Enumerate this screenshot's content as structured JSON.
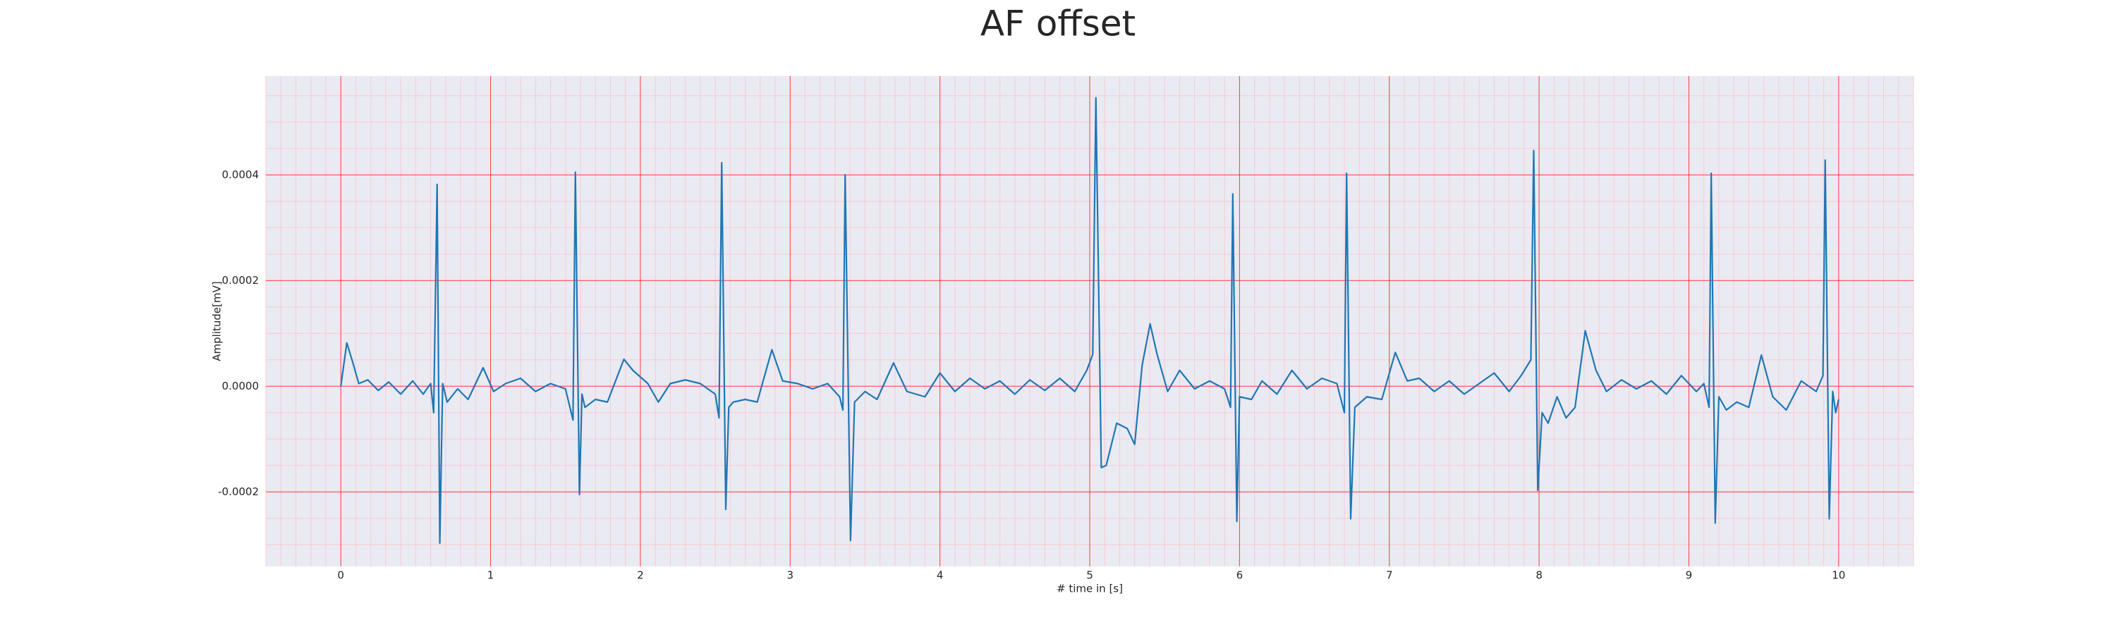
{
  "chart_data": {
    "type": "line",
    "title": "AF offset",
    "xlabel": "# time in [s]",
    "ylabel": "Amplitude[mV]",
    "xlim": [
      -0.5,
      10.5
    ],
    "ylim": [
      -0.000341,
      0.000587
    ],
    "xticks": [
      0,
      1,
      2,
      3,
      4,
      5,
      6,
      7,
      8,
      9,
      10
    ],
    "yticks": [
      -0.0002,
      {
        "value": 0,
        "label": "0.0000"
      },
      0.0002,
      0.0004
    ],
    "grid": true,
    "series": [
      {
        "color": "#1f77b4",
        "x": [
          0.0,
          0.04,
          0.08,
          0.12,
          0.18,
          0.25,
          0.32,
          0.4,
          0.48,
          0.55,
          0.6,
          0.62,
          0.643,
          0.661,
          0.68,
          0.71,
          0.78,
          0.85,
          0.95,
          1.02,
          1.1,
          1.2,
          1.3,
          1.4,
          1.5,
          1.55,
          1.566,
          1.593,
          1.61,
          1.63,
          1.7,
          1.78,
          1.89,
          1.95,
          2.05,
          2.12,
          2.2,
          2.3,
          2.4,
          2.5,
          2.525,
          2.543,
          2.57,
          2.59,
          2.62,
          2.7,
          2.78,
          2.878,
          2.95,
          3.05,
          3.15,
          3.25,
          3.33,
          3.352,
          3.367,
          3.403,
          3.43,
          3.5,
          3.58,
          3.69,
          3.78,
          3.9,
          4.0,
          4.1,
          4.2,
          4.3,
          4.4,
          4.5,
          4.6,
          4.7,
          4.8,
          4.9,
          4.98,
          5.02,
          5.041,
          5.077,
          5.11,
          5.18,
          5.25,
          5.3,
          5.35,
          5.403,
          5.45,
          5.52,
          5.6,
          5.7,
          5.8,
          5.9,
          5.94,
          5.955,
          5.982,
          6.0,
          6.08,
          6.15,
          6.25,
          6.35,
          6.45,
          6.55,
          6.65,
          6.7,
          6.715,
          6.742,
          6.77,
          6.85,
          6.95,
          7.04,
          7.12,
          7.2,
          7.3,
          7.4,
          7.5,
          7.6,
          7.7,
          7.8,
          7.88,
          7.945,
          7.964,
          7.991,
          8.02,
          8.06,
          8.12,
          8.18,
          8.24,
          8.308,
          8.38,
          8.45,
          8.55,
          8.65,
          8.75,
          8.85,
          8.95,
          9.05,
          9.1,
          9.135,
          9.149,
          9.176,
          9.2,
          9.25,
          9.32,
          9.4,
          9.484,
          9.56,
          9.65,
          9.75,
          9.85,
          9.895,
          9.91,
          9.937,
          9.96,
          9.98,
          10.0
        ],
        "values": [
          0.0,
          8.2e-05,
          4.5e-05,
          5e-06,
          1.2e-05,
          -8e-06,
          8e-06,
          -1.5e-05,
          1e-05,
          -1.5e-05,
          5e-06,
          -5e-05,
          0.000382,
          -0.000297,
          5e-06,
          -3e-05,
          -5e-06,
          -2.5e-05,
          3.5e-05,
          -1e-05,
          5e-06,
          1.5e-05,
          -1e-05,
          5e-06,
          -5e-06,
          -6.4e-05,
          0.000405,
          -0.000205,
          -1.5e-05,
          -4e-05,
          -2.5e-05,
          -3e-05,
          5.1e-05,
          3e-05,
          5e-06,
          -3e-05,
          5e-06,
          1.2e-05,
          5e-06,
          -1.5e-05,
          -6e-05,
          0.000423,
          -0.000233,
          -4e-05,
          -3e-05,
          -2.5e-05,
          -3e-05,
          6.9e-05,
          1e-05,
          5e-06,
          -5e-06,
          5e-06,
          -2e-05,
          -4.5e-05,
          0.0004,
          -0.000292,
          -3e-05,
          -1e-05,
          -2.5e-05,
          4.4e-05,
          -1e-05,
          -2e-05,
          2.5e-05,
          -1e-05,
          1.5e-05,
          -5e-06,
          1e-05,
          -1.5e-05,
          1.2e-05,
          -8e-06,
          1.5e-05,
          -1e-05,
          3e-05,
          6e-05,
          0.000546,
          -0.000154,
          -0.00015,
          -7e-05,
          -8e-05,
          -0.00011,
          4e-05,
          0.000118,
          6e-05,
          -1e-05,
          3e-05,
          -5e-06,
          1e-05,
          -5e-06,
          -4e-05,
          0.000364,
          -0.000256,
          -2e-05,
          -2.5e-05,
          1e-05,
          -1.5e-05,
          3e-05,
          -5e-06,
          1.5e-05,
          5e-06,
          -5e-05,
          0.000403,
          -0.000251,
          -4e-05,
          -2e-05,
          -2.5e-05,
          6.4e-05,
          1e-05,
          1.5e-05,
          -1e-05,
          1e-05,
          -1.5e-05,
          5e-06,
          2.5e-05,
          -1e-05,
          2e-05,
          5e-05,
          0.000446,
          -0.000197,
          -5e-05,
          -7e-05,
          -2e-05,
          -6e-05,
          -4e-05,
          0.000105,
          3e-05,
          -1e-05,
          1.2e-05,
          -5e-06,
          1e-05,
          -1.5e-05,
          2e-05,
          -1e-05,
          5e-06,
          -4e-05,
          0.000403,
          -0.000259,
          -2e-05,
          -4.5e-05,
          -3e-05,
          -4e-05,
          5.9e-05,
          -2e-05,
          -4.5e-05,
          1e-05,
          -1e-05,
          2e-05,
          0.000428,
          -0.000251,
          -1e-05,
          -5e-05,
          -2.5e-05
        ]
      }
    ]
  }
}
